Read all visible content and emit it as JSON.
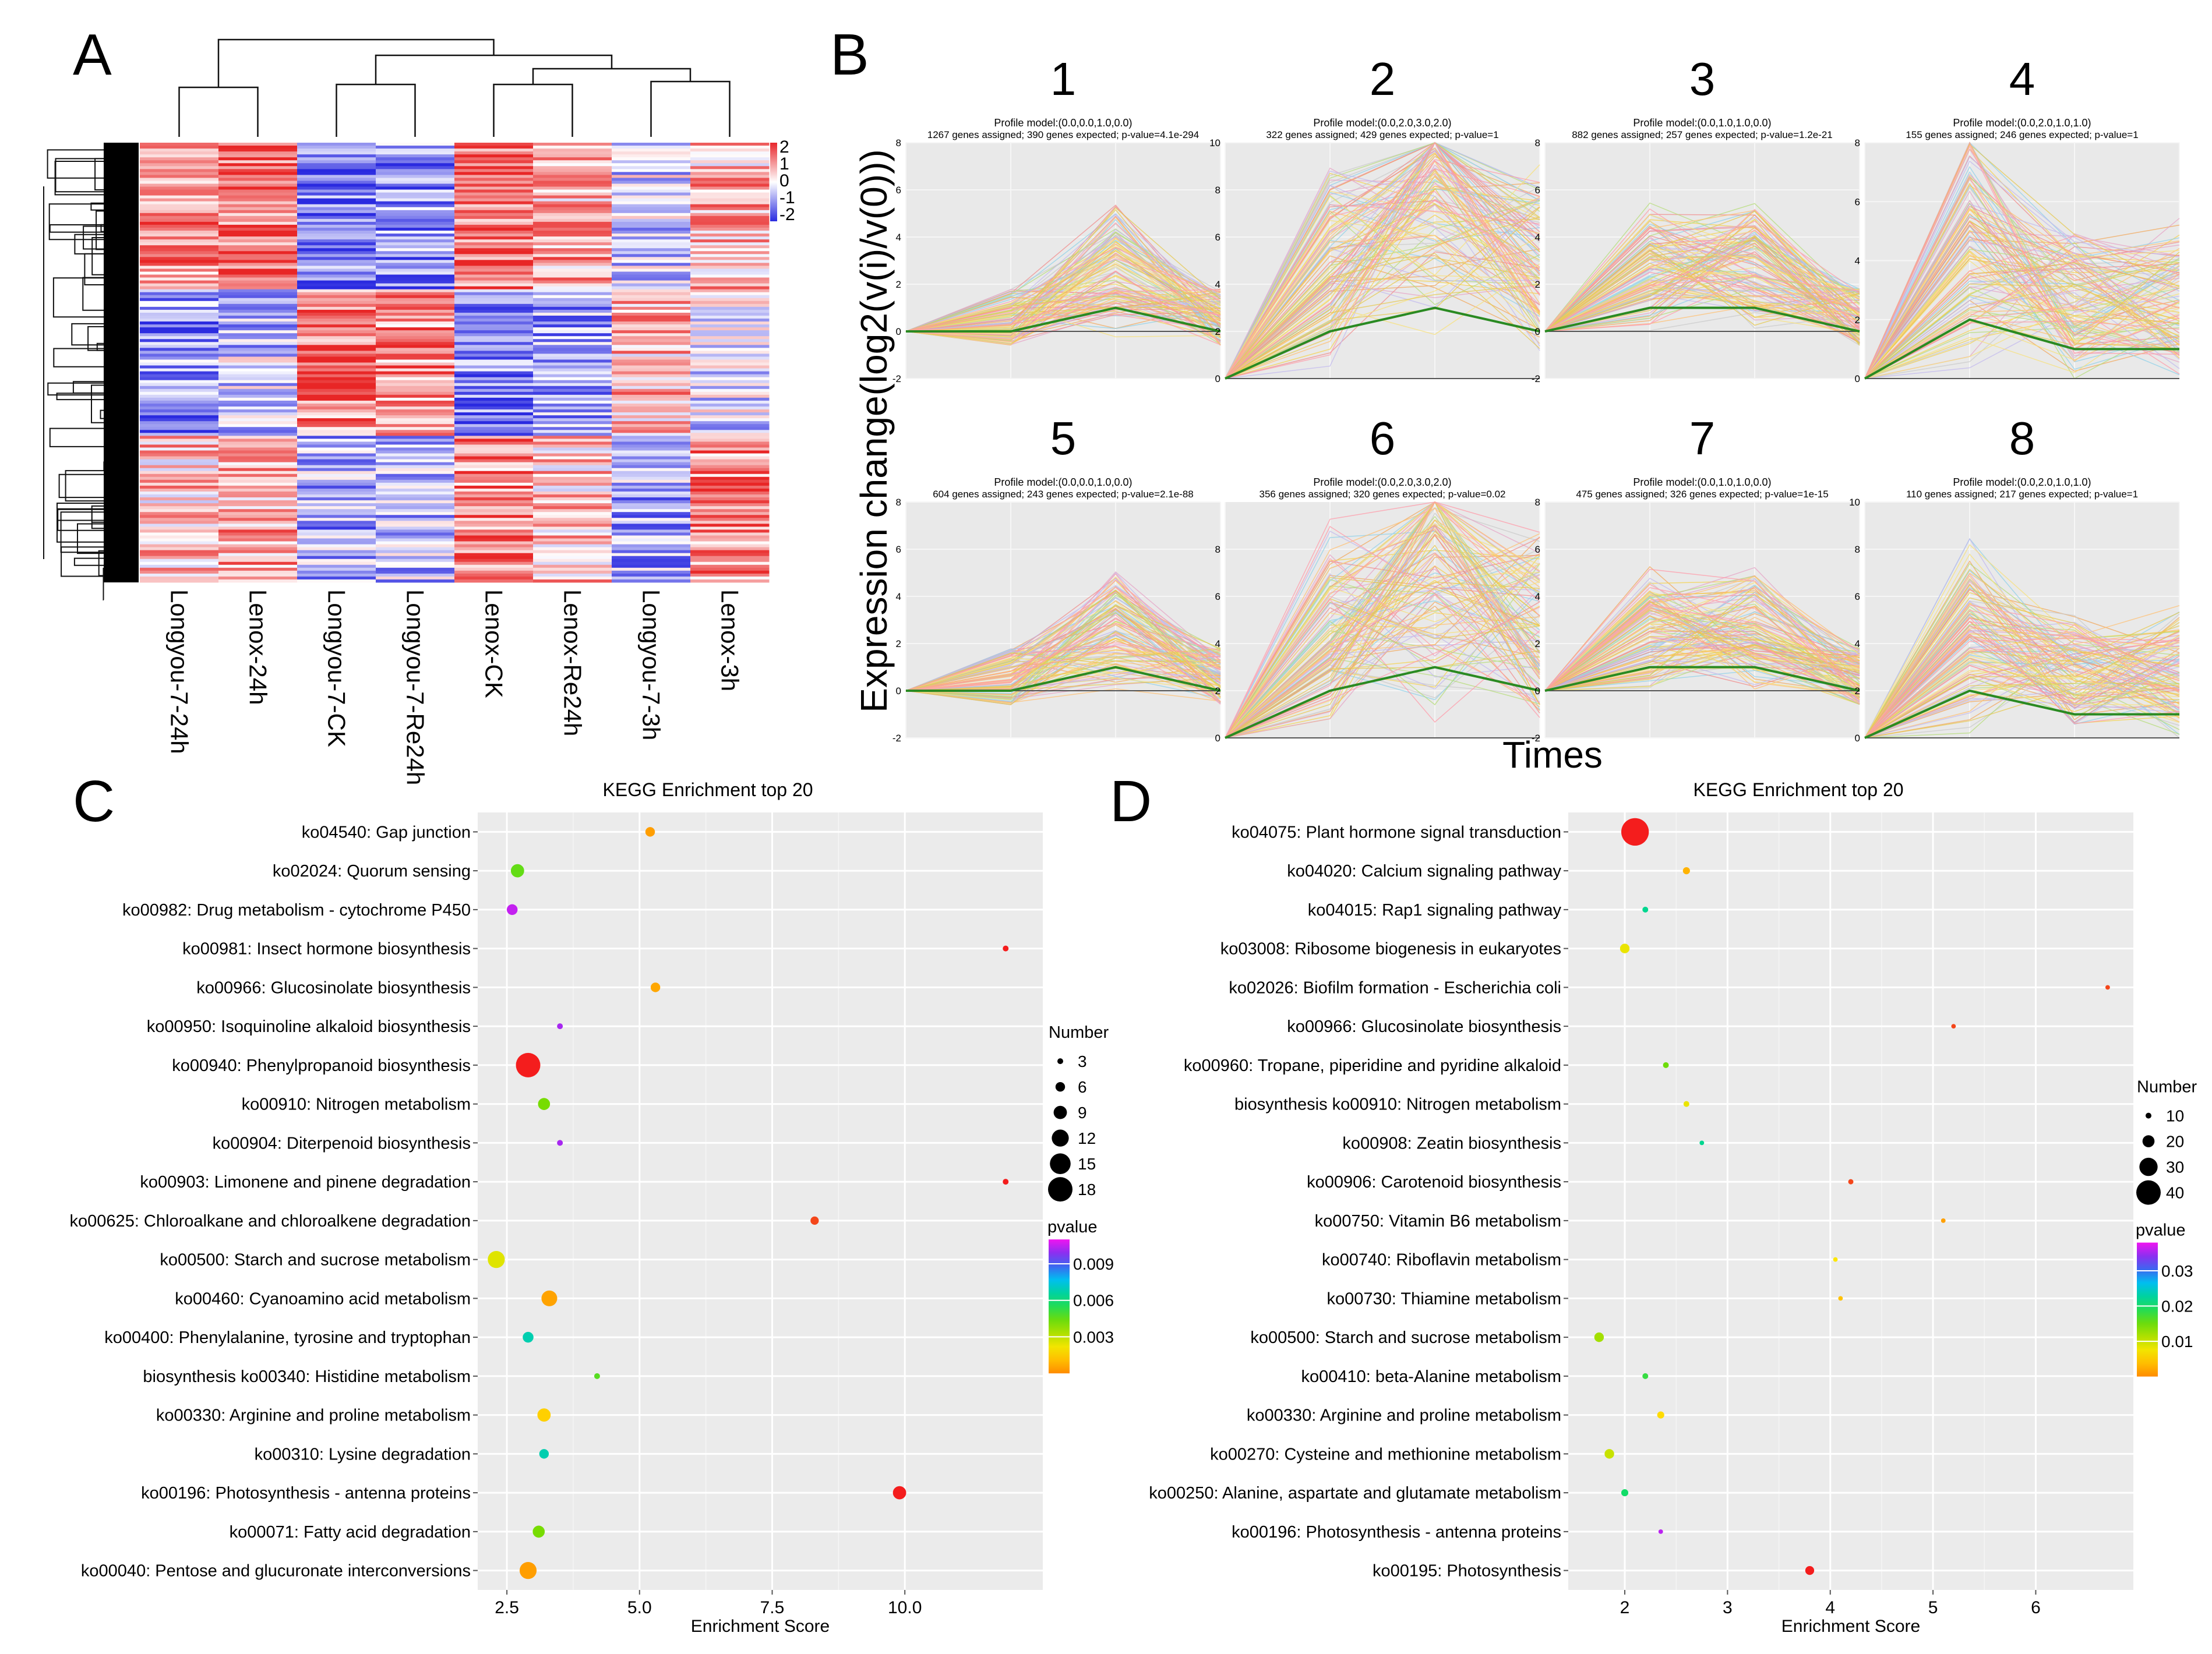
{
  "panel_letters": {
    "a": "A",
    "b": "B",
    "c": "C",
    "d": "D"
  },
  "colors": {
    "heat_high": "#e8262b",
    "heat_low": "#2a2ce0",
    "heat_mid": "#ffffff",
    "grid_bg": "#ebebeb",
    "profile_bg": "#e9e9e9",
    "model_line": "#2a8a22"
  },
  "chart_data": [
    {
      "panel": "A",
      "type": "heatmap",
      "title": "",
      "columns": [
        "Longyou-7-24h",
        "Lenox-24h",
        "Longyou-7-CK",
        "Longyou-7-Re24h",
        "Lenox-CK",
        "Lenox-Re24h",
        "Longyou-7-3h",
        "Lenox-3h"
      ],
      "colorbar_ticks": [
        "2",
        "1",
        "0",
        "-1",
        "-2"
      ],
      "value_range": [
        -2,
        2
      ]
    },
    {
      "panel": "B",
      "type": "line",
      "ylabel": "Expression change(log2(v(i)/v(0)))",
      "xlabel": "Times",
      "profiles": [
        {
          "id": "1",
          "model": "Profile model:(0.0,0.0,1.0,0.0)",
          "stats": "1267 genes assigned; 390 genes expected; p-value=4.1e-294",
          "ymin": -2,
          "ymax": 8,
          "yticks": [
            "8",
            "6",
            "4",
            "2",
            "0",
            "-2"
          ],
          "values": [
            0,
            0,
            1,
            0
          ]
        },
        {
          "id": "2",
          "model": "Profile model:(0.0,2.0,3.0,2.0)",
          "stats": "322 genes assigned; 429 genes expected; p-value=1",
          "ymin": 0,
          "ymax": 10,
          "yticks": [
            "10",
            "8",
            "6",
            "4",
            "2",
            "0"
          ],
          "values": [
            0,
            2,
            3,
            2
          ]
        },
        {
          "id": "3",
          "model": "Profile model:(0.0,1.0,1.0,0.0)",
          "stats": "882 genes assigned; 257 genes expected; p-value=1.2e-21",
          "ymin": -2,
          "ymax": 8,
          "yticks": [
            "8",
            "6",
            "4",
            "2",
            "0",
            "-2"
          ],
          "values": [
            0,
            1,
            1,
            0
          ]
        },
        {
          "id": "4",
          "model": "Profile model:(0.0,2.0,1.0,1.0)",
          "stats": "155 genes assigned; 246 genes expected; p-value=1",
          "ymin": 0,
          "ymax": 8,
          "yticks": [
            "8",
            "6",
            "4",
            "2",
            "0"
          ],
          "values": [
            0,
            2,
            1,
            1
          ]
        },
        {
          "id": "5",
          "model": "Profile model:(0.0,0.0,1.0,0.0)",
          "stats": "604 genes assigned; 243 genes expected; p-value=2.1e-88",
          "ymin": -2,
          "ymax": 8,
          "yticks": [
            "8",
            "6",
            "4",
            "2",
            "0",
            "-2"
          ],
          "values": [
            0,
            0,
            1,
            0
          ]
        },
        {
          "id": "6",
          "model": "Profile model:(0.0,2.0,3.0,2.0)",
          "stats": "356 genes assigned; 320 genes expected; p-value=0.02",
          "ymin": 0,
          "ymax": 10,
          "yticks": [
            "8",
            "6",
            "4",
            "2",
            "0"
          ],
          "values": [
            0,
            2,
            3,
            2
          ]
        },
        {
          "id": "7",
          "model": "Profile model:(0.0,1.0,1.0,0.0)",
          "stats": "475 genes assigned; 326 genes expected; p-value=1e-15",
          "ymin": -2,
          "ymax": 8,
          "yticks": [
            "8",
            "6",
            "4",
            "2",
            "0",
            "-2"
          ],
          "values": [
            0,
            1,
            1,
            0
          ]
        },
        {
          "id": "8",
          "model": "Profile model:(0.0,2.0,1.0,1.0)",
          "stats": "110 genes assigned; 217 genes expected; p-value=1",
          "ymin": 0,
          "ymax": 10,
          "yticks": [
            "10",
            "8",
            "6",
            "4",
            "2",
            "0"
          ],
          "values": [
            0,
            2,
            1,
            1
          ]
        }
      ]
    },
    {
      "panel": "C",
      "type": "scatter",
      "title": "KEGG Enrichment top 20",
      "xlabel": "Enrichment Score",
      "xlim": [
        1.95,
        12.6
      ],
      "xticks": [
        2.5,
        5.0,
        7.5,
        10.0
      ],
      "xtick_labels": [
        "2.5",
        "5.0",
        "7.5",
        "10.0"
      ],
      "size_legend": {
        "title": "Number",
        "values": [
          3,
          6,
          9,
          12,
          15,
          18
        ],
        "labels": [
          "3",
          "6",
          "9",
          "12",
          "15",
          "18"
        ]
      },
      "color_legend": {
        "title": "pvalue",
        "range": [
          0,
          0.011
        ],
        "ticks": [
          0.003,
          0.006,
          0.009
        ],
        "labels": [
          "0.003",
          "0.006",
          "0.009"
        ]
      },
      "points": [
        {
          "term": "ko04540: Gap junction",
          "x": 5.2,
          "n": 6,
          "p": 0.0004
        },
        {
          "term": "ko02024: Quorum sensing",
          "x": 2.7,
          "n": 9,
          "p": 0.0045
        },
        {
          "term": "ko00982: Drug metabolism - cytochrome P450",
          "x": 2.6,
          "n": 7,
          "p": 0.0105
        },
        {
          "term": "ko00981: Insect hormone biosynthesis",
          "x": 11.9,
          "n": 3,
          "p": 0.0001
        },
        {
          "term": "ko00966: Glucosinolate biosynthesis",
          "x": 5.3,
          "n": 6,
          "p": 0.0006
        },
        {
          "term": "ko00950: Isoquinoline alkaloid biosynthesis",
          "x": 3.5,
          "n": 3,
          "p": 0.0102
        },
        {
          "term": "ko00940: Phenylpropanoid biosynthesis",
          "x": 2.9,
          "n": 18,
          "p": 5e-05
        },
        {
          "term": "ko00910: Nitrogen metabolism",
          "x": 3.2,
          "n": 8,
          "p": 0.0042
        },
        {
          "term": "ko00904: Diterpenoid biosynthesis",
          "x": 3.5,
          "n": 3,
          "p": 0.0102
        },
        {
          "term": "ko00903: Limonene and pinene degradation",
          "x": 11.9,
          "n": 3,
          "p": 0.0001
        },
        {
          "term": "ko00625: Chloroalkane and chloroalkene degradation",
          "x": 8.3,
          "n": 5,
          "p": 0.0002
        },
        {
          "term": "ko00500: Starch and sucrose metabolism",
          "x": 2.3,
          "n": 12,
          "p": 0.0025
        },
        {
          "term": "ko00460: Cyanoamino acid metabolism",
          "x": 3.3,
          "n": 11,
          "p": 0.0005
        },
        {
          "term": "ko00400: Phenylalanine, tyrosine and tryptophan",
          "x": 2.9,
          "n": 7,
          "p": 0.0068
        },
        {
          "term": "biosynthesis ko00340: Histidine metabolism",
          "x": 4.2,
          "n": 3,
          "p": 0.0047
        },
        {
          "term": "ko00330: Arginine and proline metabolism",
          "x": 3.2,
          "n": 9,
          "p": 0.0015
        },
        {
          "term": "ko00310: Lysine degradation",
          "x": 3.2,
          "n": 6,
          "p": 0.0068
        },
        {
          "term": "ko00196: Photosynthesis - antenna proteins",
          "x": 9.9,
          "n": 9,
          "p": 5e-05
        },
        {
          "term": "ko00071: Fatty acid degradation",
          "x": 3.1,
          "n": 8,
          "p": 0.0042
        },
        {
          "term": "ko00040: Pentose and glucuronate interconversions",
          "x": 2.9,
          "n": 12,
          "p": 0.0004
        }
      ]
    },
    {
      "panel": "D",
      "type": "scatter",
      "title": "KEGG Enrichment top 20",
      "xlabel": "Enrichment Score",
      "xlim": [
        1.45,
        6.95
      ],
      "xticks": [
        2,
        3,
        4,
        5,
        6
      ],
      "xtick_labels": [
        "2",
        "3",
        "4",
        "5",
        "6"
      ],
      "size_legend": {
        "title": "Number",
        "values": [
          10,
          20,
          30,
          40
        ],
        "labels": [
          "10",
          "20",
          "30",
          "40"
        ]
      },
      "color_legend": {
        "title": "pvalue",
        "range": [
          0,
          0.038
        ],
        "ticks": [
          0.01,
          0.02,
          0.03
        ],
        "labels": [
          "0.01",
          "0.02",
          "0.03"
        ]
      },
      "points": [
        {
          "term": "ko04075: Plant hormone signal transduction",
          "x": 2.1,
          "n": 45,
          "p": 0.0001
        },
        {
          "term": "ko04020: Calcium signaling pathway",
          "x": 2.6,
          "n": 12,
          "p": 0.003
        },
        {
          "term": "ko04015: Rap1 signaling pathway",
          "x": 2.2,
          "n": 10,
          "p": 0.022
        },
        {
          "term": "ko03008: Ribosome biogenesis in eukaryotes",
          "x": 2.0,
          "n": 16,
          "p": 0.008
        },
        {
          "term": "ko02026: Biofilm formation - Escherichia coli",
          "x": 6.7,
          "n": 5,
          "p": 0.0005
        },
        {
          "term": "ko00966: Glucosinolate biosynthesis",
          "x": 5.2,
          "n": 8,
          "p": 0.0008
        },
        {
          "term": "ko00960: Tropane, piperidine and pyridine alkaloid",
          "x": 2.4,
          "n": 10,
          "p": 0.015
        },
        {
          "term": "biosynthesis ko00910: Nitrogen metabolism",
          "x": 2.6,
          "n": 10,
          "p": 0.008
        },
        {
          "term": "ko00908: Zeatin biosynthesis",
          "x": 2.75,
          "n": 4,
          "p": 0.022
        },
        {
          "term": "ko00906: Carotenoid biosynthesis",
          "x": 4.2,
          "n": 9,
          "p": 0.0008
        },
        {
          "term": "ko00750: Vitamin B6 metabolism",
          "x": 5.1,
          "n": 6,
          "p": 0.0015
        },
        {
          "term": "ko00740: Riboflavin metabolism",
          "x": 4.05,
          "n": 4,
          "p": 0.007
        },
        {
          "term": "ko00730: Thiamine metabolism",
          "x": 4.1,
          "n": 6,
          "p": 0.004
        },
        {
          "term": "ko00500: Starch and sucrose metabolism",
          "x": 1.75,
          "n": 16,
          "p": 0.012
        },
        {
          "term": "ko00410: beta-Alanine metabolism",
          "x": 2.2,
          "n": 10,
          "p": 0.018
        },
        {
          "term": "ko00330: Arginine and proline metabolism",
          "x": 2.35,
          "n": 12,
          "p": 0.006
        },
        {
          "term": "ko00270: Cysteine and methionine metabolism",
          "x": 1.85,
          "n": 16,
          "p": 0.01
        },
        {
          "term": "ko00250: Alanine, aspartate and glutamate metabolism",
          "x": 2.0,
          "n": 12,
          "p": 0.02
        },
        {
          "term": "ko00196: Photosynthesis - antenna proteins",
          "x": 2.35,
          "n": 5,
          "p": 0.036
        },
        {
          "term": "ko00195: Photosynthesis",
          "x": 3.8,
          "n": 15,
          "p": 0.0003
        }
      ]
    }
  ]
}
